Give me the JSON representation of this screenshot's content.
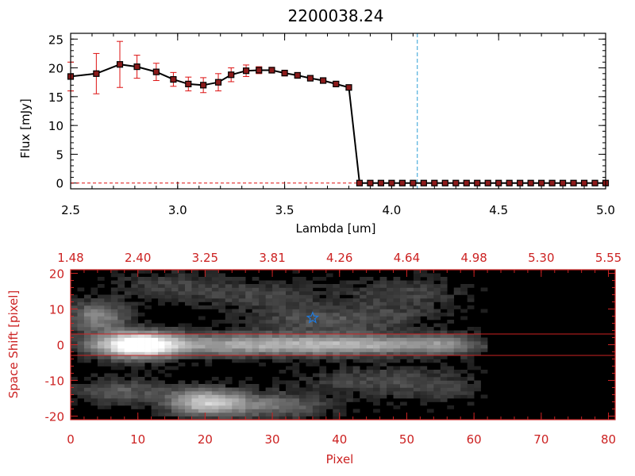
{
  "colors": {
    "axis_black": "#000000",
    "axis_red": "#cc2222",
    "error_bar": "#dd1111",
    "marker_fill": "#8b1a1a",
    "vline": "#2a9fd6",
    "star": "#1e7be0",
    "aperture": "#cc2222",
    "image_bg": "#000000"
  },
  "chart_data": [
    {
      "type": "line",
      "title": "2200038.24",
      "xlabel": "Lambda [um]",
      "ylabel": "Flux [mJy]",
      "xlim": [
        2.5,
        5.0
      ],
      "ylim": [
        -1,
        26
      ],
      "x_ticks": [
        "2.5",
        "3.0",
        "3.5",
        "4.0",
        "4.5",
        "5.0"
      ],
      "y_ticks": [
        "0",
        "5",
        "10",
        "15",
        "20",
        "25"
      ],
      "grid": false,
      "series": [
        {
          "x": [
            2.5,
            2.62,
            2.73,
            2.81,
            2.9,
            2.98,
            3.05,
            3.12,
            3.19,
            3.25,
            3.32,
            3.38,
            3.44,
            3.5,
            3.56,
            3.62,
            3.68,
            3.74,
            3.8,
            3.85,
            3.9,
            3.95,
            4.0,
            4.05,
            4.1,
            4.15,
            4.2,
            4.25,
            4.3,
            4.35,
            4.4,
            4.45,
            4.5,
            4.55,
            4.6,
            4.65,
            4.7,
            4.75,
            4.8,
            4.85,
            4.9,
            4.95,
            5.0
          ],
          "y": [
            18.5,
            19.0,
            20.6,
            20.2,
            19.3,
            18.0,
            17.2,
            17.0,
            17.5,
            18.8,
            19.5,
            19.6,
            19.6,
            19.1,
            18.7,
            18.2,
            17.8,
            17.2,
            16.6,
            0,
            0,
            0,
            0,
            0,
            0,
            0,
            0,
            0,
            0,
            0,
            0,
            0,
            0,
            0,
            0,
            0,
            0,
            0,
            0,
            0,
            0,
            0,
            0
          ],
          "err": [
            2.5,
            3.5,
            4.0,
            2.0,
            1.5,
            1.2,
            1.2,
            1.3,
            1.5,
            1.2,
            1.0,
            0.6,
            0.5,
            0.5,
            0.5,
            0.4,
            0.4,
            0.4,
            0.4,
            0,
            0,
            0,
            0,
            0,
            0,
            0,
            0,
            0,
            0,
            0,
            0,
            0,
            0,
            0,
            0,
            0,
            0,
            0,
            0,
            0,
            0,
            0,
            0
          ]
        }
      ],
      "vline_x": 4.12,
      "zero_line": true
    },
    {
      "type": "heatmap",
      "xlabel": "Pixel",
      "ylabel": "Space Shift [pixel]",
      "xlim": [
        0,
        81
      ],
      "ylim": [
        -21,
        21
      ],
      "x_ticks": [
        "0",
        "10",
        "20",
        "30",
        "40",
        "50",
        "60",
        "70",
        "80"
      ],
      "y_ticks": [
        "-20",
        "-10",
        "0",
        "10",
        "20"
      ],
      "top_ticks": [
        "1.48",
        "2.40",
        "3.25",
        "3.81",
        "4.26",
        "4.64",
        "4.98",
        "5.30",
        "5.55"
      ],
      "aperture_y": [
        -3,
        3
      ],
      "data_extent_x": 62,
      "star": {
        "x": 36,
        "y": 7.5
      },
      "blobs": [
        {
          "x": 10,
          "y": 0,
          "sx": 4.0,
          "sy": 2.6,
          "v": 1.0
        },
        {
          "x": 25,
          "y": 0,
          "sx": 14.0,
          "sy": 2.2,
          "v": 0.55
        },
        {
          "x": 44,
          "y": 0,
          "sx": 9.0,
          "sy": 2.0,
          "v": 0.4
        },
        {
          "x": 56,
          "y": 0,
          "sx": 4.0,
          "sy": 2.0,
          "v": 0.3
        },
        {
          "x": 4,
          "y": 8,
          "sx": 3.0,
          "sy": 3.0,
          "v": 0.45
        },
        {
          "x": 20,
          "y": -16,
          "sx": 4.0,
          "sy": 2.6,
          "v": 0.7
        },
        {
          "x": 30,
          "y": -17,
          "sx": 6.0,
          "sy": 2.5,
          "v": 0.35
        },
        {
          "x": 7,
          "y": -13,
          "sx": 5.0,
          "sy": 2.5,
          "v": 0.28
        },
        {
          "x": 36,
          "y": 7,
          "sx": 7.0,
          "sy": 2.5,
          "v": 0.22
        },
        {
          "x": 28,
          "y": 14,
          "sx": 8.0,
          "sy": 3.0,
          "v": 0.18
        },
        {
          "x": 50,
          "y": 15,
          "sx": 6.0,
          "sy": 3.0,
          "v": 0.18
        },
        {
          "x": 14,
          "y": 17,
          "sx": 6.0,
          "sy": 3.0,
          "v": 0.15
        },
        {
          "x": 44,
          "y": -10,
          "sx": 7.0,
          "sy": 3.0,
          "v": 0.2
        },
        {
          "x": 55,
          "y": -12,
          "sx": 5.0,
          "sy": 3.0,
          "v": 0.15
        },
        {
          "x": 48,
          "y": 8,
          "sx": 6.0,
          "sy": 3.0,
          "v": 0.14
        }
      ]
    }
  ]
}
